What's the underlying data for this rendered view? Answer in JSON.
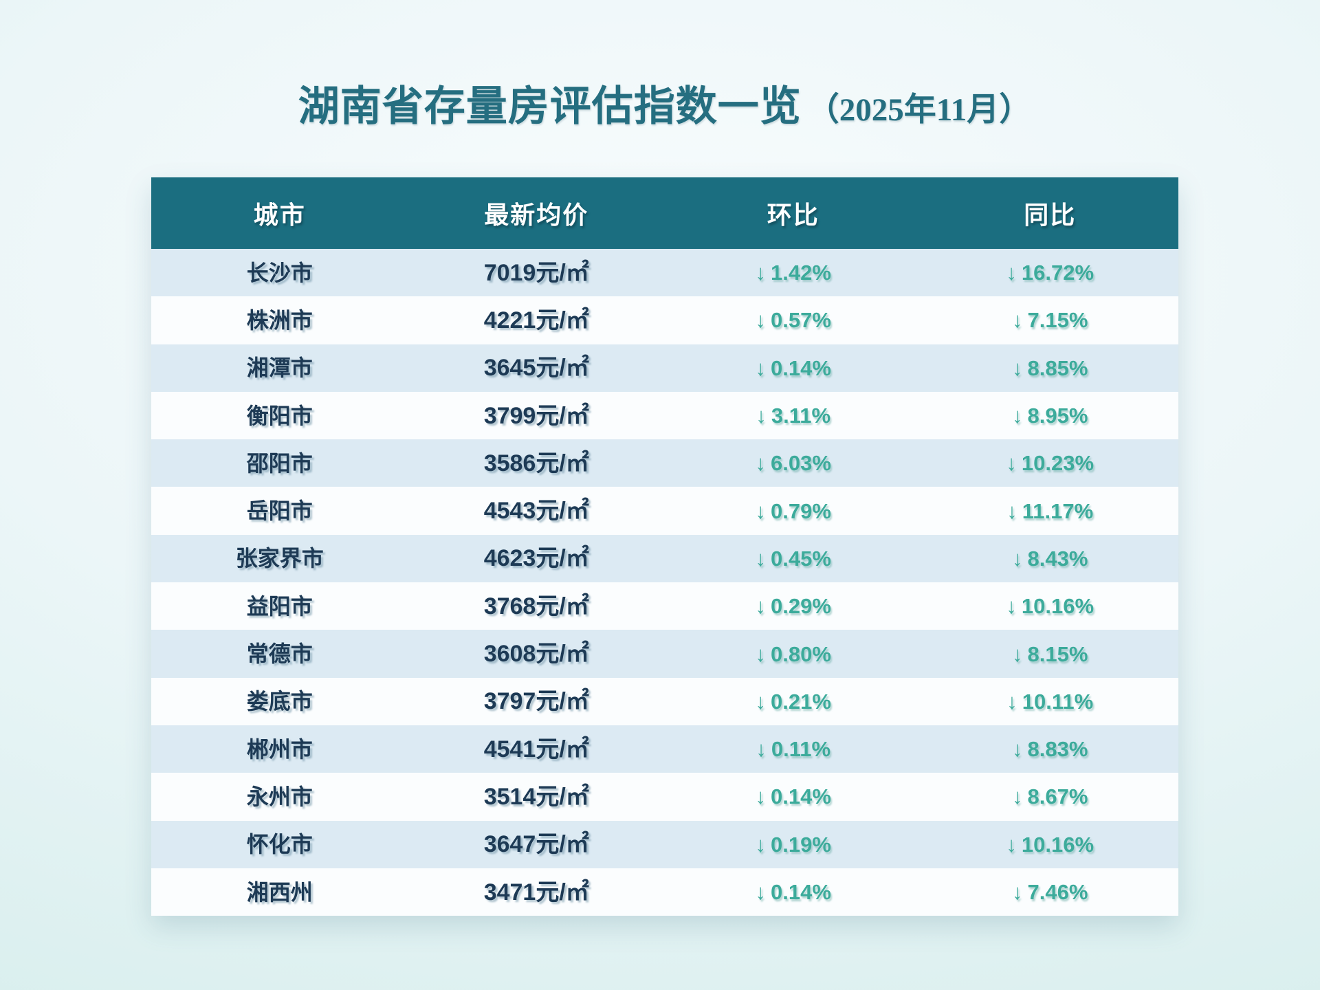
{
  "title": {
    "main": "湖南省存量房评估指数一览",
    "suffix": "（2025年11月）"
  },
  "icons": {
    "down_arrow": "↓"
  },
  "colors": {
    "header_bg": "#1b6e80",
    "row_alt_bg": "#dceaf3",
    "row_bg": "#fbfdfe",
    "text_dark": "#1d3a55",
    "percent_green": "#3cab9b",
    "title_teal": "#256e80"
  },
  "chart_data": {
    "type": "table",
    "title": "湖南省存量房评估指数一览（2025年11月）",
    "columns": [
      "城市",
      "最新均价",
      "环比",
      "同比"
    ],
    "price_unit": "元/㎡",
    "all_changes_negative": true,
    "rows": [
      {
        "city": "长沙市",
        "price": 7019,
        "price_display": "7019元/㎡",
        "mom": -1.42,
        "mom_display": "1.42%",
        "yoy": -16.72,
        "yoy_display": "16.72%"
      },
      {
        "city": "株洲市",
        "price": 4221,
        "price_display": "4221元/㎡",
        "mom": -0.57,
        "mom_display": "0.57%",
        "yoy": -7.15,
        "yoy_display": "7.15%"
      },
      {
        "city": "湘潭市",
        "price": 3645,
        "price_display": "3645元/㎡",
        "mom": -0.14,
        "mom_display": "0.14%",
        "yoy": -8.85,
        "yoy_display": "8.85%"
      },
      {
        "city": "衡阳市",
        "price": 3799,
        "price_display": "3799元/㎡",
        "mom": -3.11,
        "mom_display": "3.11%",
        "yoy": -8.95,
        "yoy_display": "8.95%"
      },
      {
        "city": "邵阳市",
        "price": 3586,
        "price_display": "3586元/㎡",
        "mom": -6.03,
        "mom_display": "6.03%",
        "yoy": -10.23,
        "yoy_display": "10.23%"
      },
      {
        "city": "岳阳市",
        "price": 4543,
        "price_display": "4543元/㎡",
        "mom": -0.79,
        "mom_display": "0.79%",
        "yoy": -11.17,
        "yoy_display": "11.17%"
      },
      {
        "city": "张家界市",
        "price": 4623,
        "price_display": "4623元/㎡",
        "mom": -0.45,
        "mom_display": "0.45%",
        "yoy": -8.43,
        "yoy_display": "8.43%"
      },
      {
        "city": "益阳市",
        "price": 3768,
        "price_display": "3768元/㎡",
        "mom": -0.29,
        "mom_display": "0.29%",
        "yoy": -10.16,
        "yoy_display": "10.16%"
      },
      {
        "city": "常德市",
        "price": 3608,
        "price_display": "3608元/㎡",
        "mom": -0.8,
        "mom_display": "0.80%",
        "yoy": -8.15,
        "yoy_display": "8.15%"
      },
      {
        "city": "娄底市",
        "price": 3797,
        "price_display": "3797元/㎡",
        "mom": -0.21,
        "mom_display": "0.21%",
        "yoy": -10.11,
        "yoy_display": "10.11%"
      },
      {
        "city": "郴州市",
        "price": 4541,
        "price_display": "4541元/㎡",
        "mom": -0.11,
        "mom_display": "0.11%",
        "yoy": -8.83,
        "yoy_display": "8.83%"
      },
      {
        "city": "永州市",
        "price": 3514,
        "price_display": "3514元/㎡",
        "mom": -0.14,
        "mom_display": "0.14%",
        "yoy": -8.67,
        "yoy_display": "8.67%"
      },
      {
        "city": "怀化市",
        "price": 3647,
        "price_display": "3647元/㎡",
        "mom": -0.19,
        "mom_display": "0.19%",
        "yoy": -10.16,
        "yoy_display": "10.16%"
      },
      {
        "city": "湘西州",
        "price": 3471,
        "price_display": "3471元/㎡",
        "mom": -0.14,
        "mom_display": "0.14%",
        "yoy": -7.46,
        "yoy_display": "7.46%"
      }
    ]
  }
}
